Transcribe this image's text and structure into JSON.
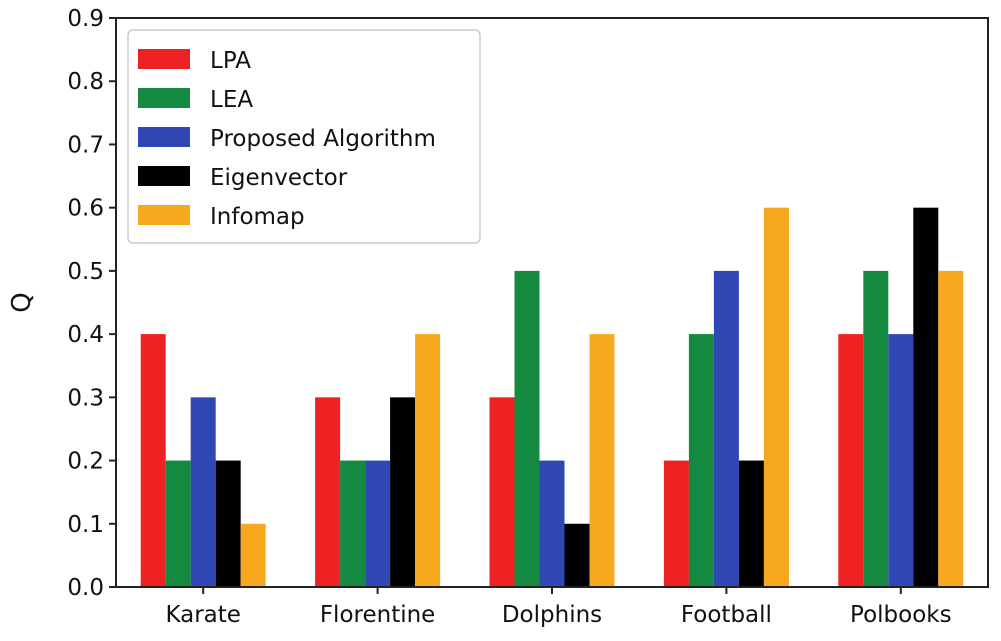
{
  "chart_data": {
    "type": "bar",
    "title": "",
    "xlabel": "",
    "ylabel": "Q",
    "ylim": [
      0,
      0.9
    ],
    "yticks": [
      "0.0",
      "0.1",
      "0.2",
      "0.3",
      "0.4",
      "0.5",
      "0.6",
      "0.7",
      "0.8",
      "0.9"
    ],
    "categories": [
      "Karate",
      "Florentine",
      "Dolphins",
      "Football",
      "Polbooks"
    ],
    "legend_position": "top-left",
    "series": [
      {
        "name": "LPA",
        "color": "#ee2222",
        "values": [
          0.4,
          0.3,
          0.3,
          0.2,
          0.4
        ]
      },
      {
        "name": "LEA",
        "color": "#138a40",
        "values": [
          0.2,
          0.2,
          0.5,
          0.4,
          0.5
        ]
      },
      {
        "name": "Proposed Algorithm",
        "color": "#2f48b4",
        "values": [
          0.3,
          0.2,
          0.2,
          0.5,
          0.4
        ]
      },
      {
        "name": "Eigenvector",
        "color": "#000000",
        "values": [
          0.2,
          0.3,
          0.1,
          0.2,
          0.6
        ]
      },
      {
        "name": "Infomap",
        "color": "#f8a81e",
        "values": [
          0.1,
          0.4,
          0.4,
          0.6,
          0.5
        ]
      }
    ]
  }
}
